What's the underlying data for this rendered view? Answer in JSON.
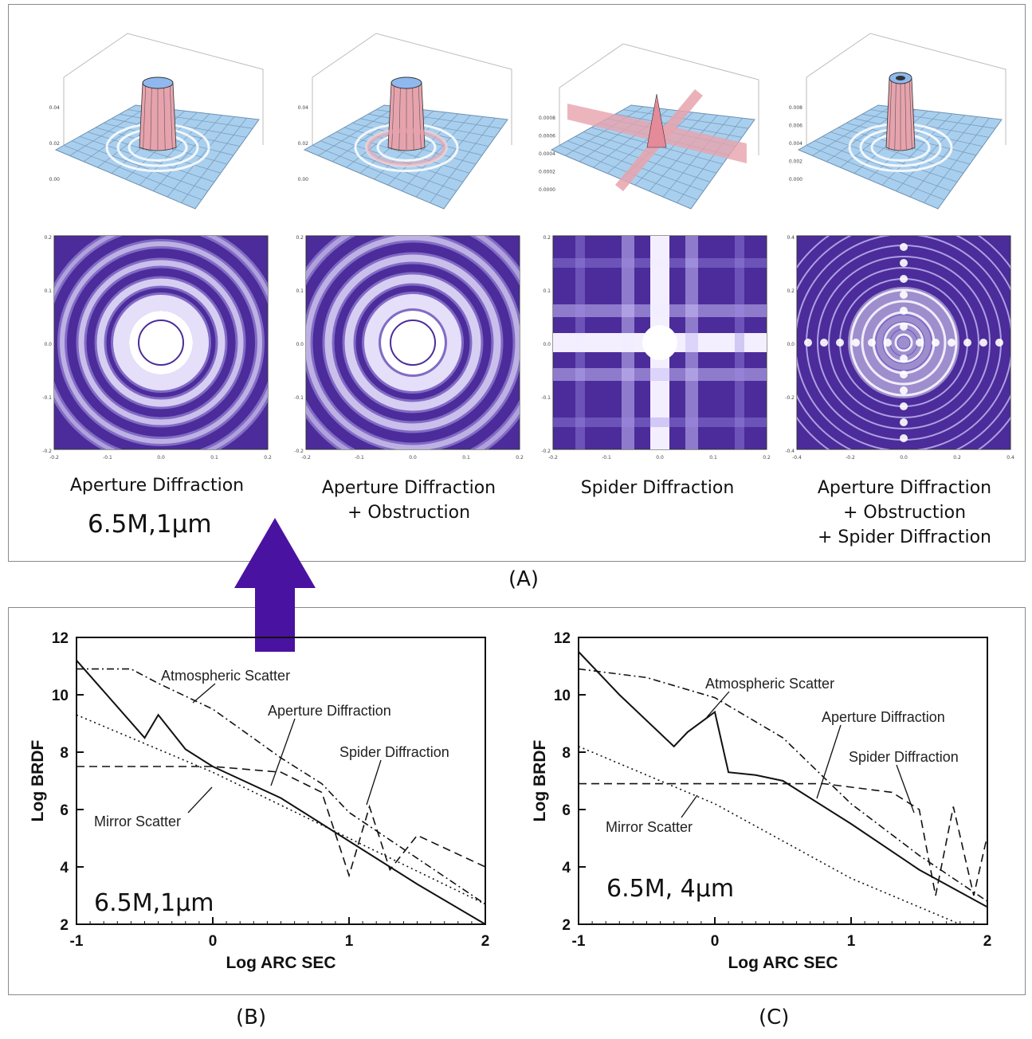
{
  "panel_a": {
    "label": "(A)",
    "columns": [
      {
        "caption_lines": [
          "Aperture Diffraction"
        ],
        "condition": "6.5M,1µm",
        "surface_z_ticks": [
          "0.04",
          "0.02",
          "0.00"
        ],
        "map_ticks": [
          "0.2",
          "0.1",
          "0.0",
          "-0.1",
          "-0.2"
        ]
      },
      {
        "caption_lines": [
          "Aperture Diffraction",
          "+ Obstruction"
        ],
        "surface_z_ticks": [
          "0.04",
          "0.02",
          "0.00"
        ],
        "map_ticks": [
          "0.2",
          "0.1",
          "0.0",
          "-0.1",
          "-0.2"
        ]
      },
      {
        "caption_lines": [
          "Spider Diffraction"
        ],
        "surface_z_ticks": [
          "0.0008",
          "0.0006",
          "0.0004",
          "0.0002",
          "0.0000"
        ],
        "map_ticks": [
          "0.2",
          "0.1",
          "0.0",
          "-0.1",
          "-0.2"
        ]
      },
      {
        "caption_lines": [
          "Aperture Diffraction",
          "+ Obstruction",
          "+ Spider Diffraction"
        ],
        "surface_z_ticks": [
          "0.008",
          "0.006",
          "0.004",
          "0.002",
          "0.000"
        ],
        "map_ticks": [
          "0.4",
          "0.2",
          "0.0",
          "-0.2",
          "-0.4"
        ]
      }
    ]
  },
  "panel_b_label": "(B)",
  "panel_c_label": "(C)",
  "colors": {
    "surface": "#a9cfee",
    "peak": "#e7a3ad",
    "map_bg": "#4b2c9a",
    "ring": "#ffffff",
    "arrow": "#4a12a0"
  },
  "chart_data": [
    {
      "type": "line",
      "condition_label": "6.5M,1µm",
      "xlabel": "Log ARC SEC",
      "ylabel": "Log BRDF",
      "xlim": [
        -1,
        2
      ],
      "ylim": [
        2,
        12
      ],
      "xticks": [
        "-1",
        "0",
        "1",
        "2"
      ],
      "yticks": [
        "2",
        "4",
        "6",
        "8",
        "10",
        "12"
      ],
      "annotations": [
        "Atmospheric Scatter",
        "Aperture Diffraction",
        "Spider Diffraction",
        "Mirror Scatter"
      ],
      "series": [
        {
          "name": "Atmospheric Scatter",
          "style": "dash-dot",
          "x": [
            -1,
            -0.6,
            -0.4,
            0,
            0.5,
            0.8,
            1,
            1.5,
            2
          ],
          "y": [
            10.9,
            10.9,
            10.4,
            9.5,
            7.8,
            6.9,
            5.9,
            4.3,
            2.7
          ]
        },
        {
          "name": "Aperture Diffraction",
          "style": "solid",
          "x": [
            -1,
            -0.5,
            -0.4,
            -0.2,
            0,
            0.5,
            1,
            1.5,
            2
          ],
          "y": [
            11.2,
            8.5,
            9.3,
            8.1,
            7.5,
            6.4,
            4.9,
            3.4,
            2.0
          ]
        },
        {
          "name": "Spider Diffraction",
          "style": "dashed",
          "x": [
            -1,
            0,
            0.5,
            0.8,
            1,
            1.15,
            1.3,
            1.5,
            2
          ],
          "y": [
            7.5,
            7.5,
            7.3,
            6.6,
            3.7,
            6.1,
            3.9,
            5.1,
            4.0
          ]
        },
        {
          "name": "Mirror Scatter",
          "style": "dotted",
          "x": [
            -1,
            0,
            1,
            2
          ],
          "y": [
            9.3,
            7.3,
            5.0,
            2.7
          ]
        }
      ]
    },
    {
      "type": "line",
      "condition_label": "6.5M, 4µm",
      "xlabel": "Log ARC SEC",
      "ylabel": "Log BRDF",
      "xlim": [
        -1,
        2
      ],
      "ylim": [
        2,
        12
      ],
      "xticks": [
        "-1",
        "0",
        "1",
        "2"
      ],
      "yticks": [
        "2",
        "4",
        "6",
        "8",
        "10",
        "12"
      ],
      "annotations": [
        "Atmospheric Scatter",
        "Aperture Diffraction",
        "Spider Diffraction",
        "Mirror Scatter"
      ],
      "series": [
        {
          "name": "Atmospheric Scatter",
          "style": "dash-dot",
          "x": [
            -1,
            -0.5,
            0,
            0.5,
            1,
            1.5,
            2
          ],
          "y": [
            10.9,
            10.6,
            9.9,
            8.5,
            6.2,
            4.4,
            2.8
          ]
        },
        {
          "name": "Aperture Diffraction",
          "style": "solid",
          "x": [
            -1,
            -0.7,
            -0.3,
            -0.2,
            0,
            0.1,
            0.3,
            0.5,
            1,
            1.5,
            2
          ],
          "y": [
            11.5,
            10.0,
            8.2,
            8.7,
            9.4,
            7.3,
            7.2,
            7.0,
            5.5,
            3.9,
            2.6
          ]
        },
        {
          "name": "Spider Diffraction",
          "style": "dashed",
          "x": [
            -1,
            0,
            0.8,
            1.3,
            1.5,
            1.62,
            1.75,
            1.9,
            2
          ],
          "y": [
            6.9,
            6.9,
            6.9,
            6.6,
            6.0,
            3.0,
            6.1,
            3.0,
            5.1
          ]
        },
        {
          "name": "Mirror Scatter",
          "style": "dotted",
          "x": [
            -1,
            0,
            1,
            1.8
          ],
          "y": [
            8.2,
            6.2,
            3.6,
            2.0
          ]
        }
      ]
    }
  ]
}
